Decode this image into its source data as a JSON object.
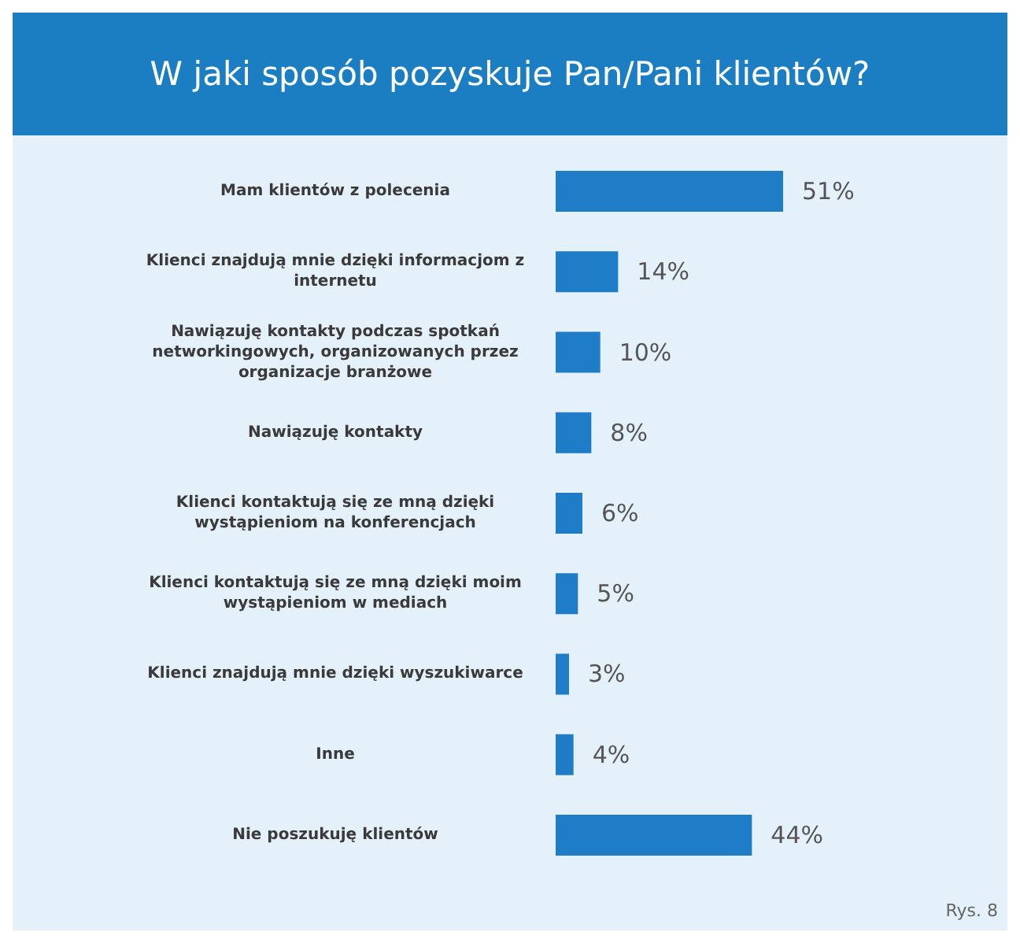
{
  "chart_data": {
    "type": "bar",
    "orientation": "horizontal",
    "title": "W jaki sposób pozyskuje Pan/Pani klientów?",
    "categories": [
      "Mam klientów z polecenia",
      "Klienci znajdują mnie dzięki informacjom z\ninternetu",
      "Nawiązuję kontakty podczas spotkań\nnetworkingowych, organizowanych przez\norganizacje branżowe",
      "Nawiązuję kontakty",
      "Klienci kontaktują się ze mną dzięki\nwystąpieniom na konferencjach",
      "Klienci kontaktują się ze mną dzięki moim\nwystąpieniom w mediach",
      "Klienci znajdują mnie dzięki wyszukiwarce",
      "Inne",
      "Nie poszukuję klientów"
    ],
    "values": [
      51,
      14,
      10,
      8,
      6,
      5,
      3,
      4,
      44
    ],
    "value_labels": [
      "51%",
      "14%",
      "10%",
      "8%",
      "6%",
      "5%",
      "3%",
      "4%",
      "44%"
    ],
    "color": "#1f7cc7",
    "annotations": [
      "Rys. 8"
    ]
  }
}
